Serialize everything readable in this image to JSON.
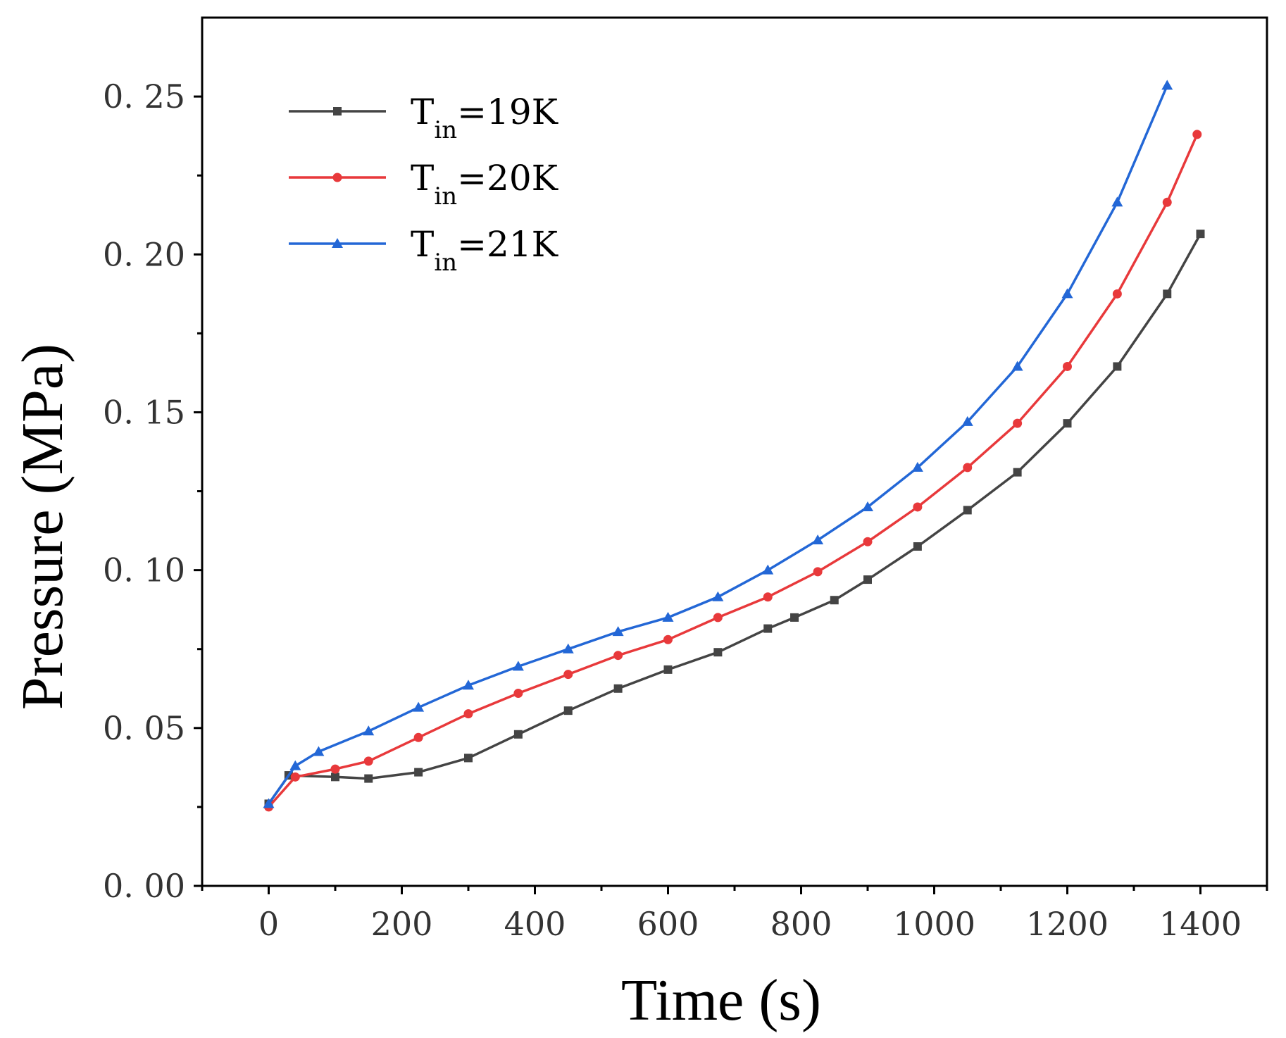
{
  "chart_data": {
    "type": "line",
    "title": "",
    "xlabel": "Time (s)",
    "ylabel": "Pressure (MPa)",
    "xlim": [
      -100,
      1500
    ],
    "ylim": [
      0,
      0.275
    ],
    "x_ticks": [
      0,
      200,
      400,
      600,
      800,
      1000,
      1200,
      1400
    ],
    "x_tick_labels": [
      "0",
      "200",
      "400",
      "600",
      "800",
      "1000",
      "1200",
      "1400"
    ],
    "y_ticks": [
      0,
      0.05,
      0.1,
      0.15,
      0.2,
      0.25
    ],
    "y_tick_labels": [
      "0. 00",
      "0. 05",
      "0. 10",
      "0. 15",
      "0. 20",
      "0. 25"
    ],
    "grid": false,
    "legend_position": "top-left",
    "series": [
      {
        "name": "T_in=19K",
        "legend_main": "T",
        "legend_sub": "in",
        "legend_tail": "=19K",
        "color": "#444444",
        "marker": "square",
        "x": [
          0,
          30,
          100,
          150,
          225,
          300,
          375,
          450,
          525,
          600,
          675,
          750,
          790,
          850,
          900,
          975,
          1050,
          1125,
          1200,
          1275,
          1350,
          1400
        ],
        "y": [
          0.026,
          0.035,
          0.0345,
          0.034,
          0.036,
          0.0405,
          0.048,
          0.0555,
          0.0625,
          0.0685,
          0.074,
          0.0815,
          0.085,
          0.0905,
          0.097,
          0.1075,
          0.119,
          0.131,
          0.1465,
          0.1645,
          0.1875,
          0.2065
        ]
      },
      {
        "name": "T_in=20K",
        "legend_main": "T",
        "legend_sub": "in",
        "legend_tail": "=20K",
        "color": "#e8393b",
        "marker": "circle",
        "x": [
          0,
          40,
          100,
          150,
          225,
          300,
          375,
          450,
          525,
          600,
          675,
          750,
          825,
          900,
          975,
          1050,
          1125,
          1200,
          1275,
          1350,
          1395
        ],
        "y": [
          0.025,
          0.0345,
          0.037,
          0.0395,
          0.047,
          0.0545,
          0.061,
          0.067,
          0.073,
          0.078,
          0.085,
          0.0915,
          0.0995,
          0.109,
          0.12,
          0.1325,
          0.1465,
          0.1645,
          0.1875,
          0.2165,
          0.238
        ]
      },
      {
        "name": "T_in=21K",
        "legend_main": "T",
        "legend_sub": "in",
        "legend_tail": "=21K",
        "color": "#2367d6",
        "marker": "triangle",
        "x": [
          0,
          40,
          75,
          150,
          225,
          300,
          375,
          450,
          525,
          600,
          675,
          750,
          825,
          900,
          975,
          1050,
          1125,
          1200,
          1275,
          1350
        ],
        "y": [
          0.026,
          0.038,
          0.0425,
          0.049,
          0.0565,
          0.0635,
          0.0695,
          0.075,
          0.0805,
          0.085,
          0.0915,
          0.1,
          0.1095,
          0.12,
          0.1325,
          0.147,
          0.1645,
          0.1875,
          0.2165,
          0.2535
        ]
      }
    ]
  }
}
